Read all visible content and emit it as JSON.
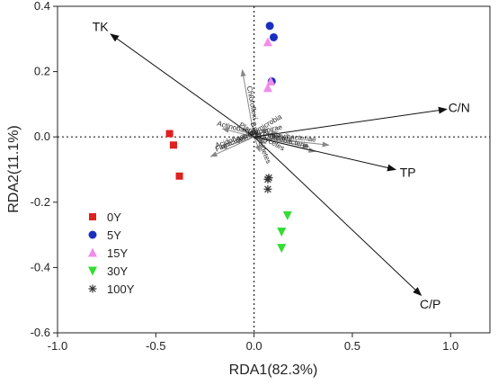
{
  "chart_data": {
    "type": "scatter",
    "subtype": "rda-biplot",
    "xlabel": "RDA1(82.3%)",
    "ylabel": "RDA2(11.1%)",
    "xlim": [
      -1.0,
      1.2
    ],
    "ylim": [
      -0.6,
      0.4
    ],
    "xticks": [
      -1.0,
      -0.5,
      0.0,
      0.5,
      1.0
    ],
    "xtick_labels": [
      "-1.0",
      "-0.5",
      "0.0",
      "0.5",
      "1.0"
    ],
    "yticks": [
      -0.6,
      -0.4,
      -0.2,
      0.0,
      0.2,
      0.4
    ],
    "ytick_labels": [
      "-0.6",
      "-0.4",
      "-0.2",
      "0.0",
      "0.2",
      "0.4"
    ],
    "zero_lines": true,
    "legend_position": "lower-left",
    "series": [
      {
        "name": "0Y",
        "marker": "square",
        "color": "#e02020",
        "points": [
          [
            -0.43,
            0.01
          ],
          [
            -0.41,
            -0.025
          ],
          [
            -0.38,
            -0.12
          ]
        ]
      },
      {
        "name": "5Y",
        "marker": "circle",
        "color": "#1a2fc0",
        "points": [
          [
            0.08,
            0.34
          ],
          [
            0.1,
            0.305
          ],
          [
            0.09,
            0.17
          ]
        ]
      },
      {
        "name": "15Y",
        "marker": "triangle-up",
        "color": "#f08ce8",
        "points": [
          [
            0.07,
            0.29
          ],
          [
            0.085,
            0.17
          ],
          [
            0.07,
            0.15
          ]
        ]
      },
      {
        "name": "30Y",
        "marker": "triangle-down",
        "color": "#33dd33",
        "points": [
          [
            0.17,
            -0.24
          ],
          [
            0.14,
            -0.29
          ],
          [
            0.14,
            -0.34
          ]
        ]
      },
      {
        "name": "100Y",
        "marker": "asterisk",
        "color": "#333333",
        "points": [
          [
            0.07,
            -0.13
          ],
          [
            0.07,
            -0.16
          ],
          [
            0.075,
            -0.125
          ]
        ]
      }
    ],
    "env_arrows": [
      {
        "label": "TK",
        "x": -0.73,
        "y": 0.315
      },
      {
        "label": "C/N",
        "x": 0.98,
        "y": 0.085
      },
      {
        "label": "TP",
        "x": 0.72,
        "y": -0.1
      },
      {
        "label": "C/P",
        "x": 0.85,
        "y": -0.485
      }
    ],
    "species_arrows": [
      {
        "label": "Chloroflexi",
        "x": -0.06,
        "y": 0.205
      },
      {
        "label": "Actinobacteria",
        "x": -0.16,
        "y": 0.025
      },
      {
        "label": "Verrucomicrobia",
        "x": 0.07,
        "y": 0.025
      },
      {
        "label": "Nitrospirae",
        "x": 0.12,
        "y": 0.015
      },
      {
        "label": "Ignavibacteriae",
        "x": 0.38,
        "y": -0.025
      },
      {
        "label": "others",
        "x": 0.28,
        "y": -0.03
      },
      {
        "label": "Proteobacteria",
        "x": 0.31,
        "y": -0.045
      },
      {
        "label": "Planctomycetes",
        "x": 0.06,
        "y": -0.02
      },
      {
        "label": "Bacteroidetes",
        "x": 0.03,
        "y": -0.045
      },
      {
        "label": "Acidobacteria",
        "x": -0.17,
        "y": -0.035
      },
      {
        "label": "Firmicutes",
        "x": -0.22,
        "y": -0.06
      }
    ]
  }
}
